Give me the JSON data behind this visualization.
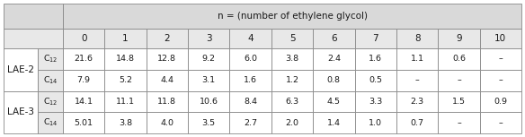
{
  "title": "n = (number of ethylene glycol)",
  "col_headers": [
    "0",
    "1",
    "2",
    "3",
    "4",
    "5",
    "6",
    "7",
    "8",
    "9",
    "10"
  ],
  "row_groups": [
    {
      "label": "LAE-2",
      "rows": [
        {
          "sub": "C$_{12}$",
          "values": [
            "21.6",
            "14.8",
            "12.8",
            "9.2",
            "6.0",
            "3.8",
            "2.4",
            "1.6",
            "1.1",
            "0.6",
            "–"
          ]
        },
        {
          "sub": "C$_{14}$",
          "values": [
            "7.9",
            "5.2",
            "4.4",
            "3.1",
            "1.6",
            "1.2",
            "0.8",
            "0.5",
            "–",
            "–",
            "–"
          ]
        }
      ]
    },
    {
      "label": "LAE-3",
      "rows": [
        {
          "sub": "C$_{12}$",
          "values": [
            "14.1",
            "11.1",
            "11.8",
            "10.6",
            "8.4",
            "6.3",
            "4.5",
            "3.3",
            "2.3",
            "1.5",
            "0.9"
          ]
        },
        {
          "sub": "C$_{14}$",
          "values": [
            "5.01",
            "3.8",
            "4.0",
            "3.5",
            "2.7",
            "2.0",
            "1.4",
            "1.0",
            "0.7",
            "–",
            "–"
          ]
        }
      ]
    }
  ],
  "bg_header": "#d9d9d9",
  "bg_subheader": "#e8e8e8",
  "bg_white": "#ffffff",
  "text_color": "#1a1a1a",
  "border_color": "#888888",
  "font_size": 6.8,
  "lae_font_size": 7.5,
  "title_font_size": 7.5,
  "header_font_size": 7.5
}
